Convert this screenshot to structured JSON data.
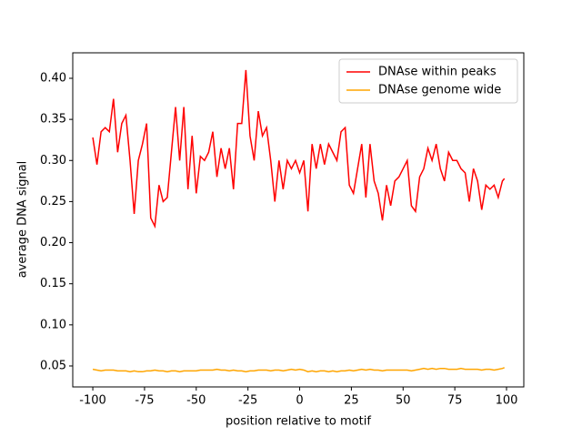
{
  "chart_data": {
    "type": "line",
    "xlabel": "position relative to motif",
    "ylabel": "average DNA signal",
    "x": [
      -100,
      -98,
      -96,
      -94,
      -92,
      -90,
      -88,
      -86,
      -84,
      -82,
      -80,
      -78,
      -76,
      -74,
      -72,
      -70,
      -68,
      -66,
      -64,
      -62,
      -60,
      -58,
      -56,
      -54,
      -52,
      -50,
      -48,
      -46,
      -44,
      -42,
      -40,
      -38,
      -36,
      -34,
      -32,
      -30,
      -28,
      -26,
      -24,
      -22,
      -20,
      -18,
      -16,
      -14,
      -12,
      -10,
      -8,
      -6,
      -4,
      -2,
      0,
      2,
      4,
      6,
      8,
      10,
      12,
      14,
      16,
      18,
      20,
      22,
      24,
      26,
      28,
      30,
      32,
      34,
      36,
      38,
      40,
      42,
      44,
      46,
      48,
      50,
      52,
      54,
      56,
      58,
      60,
      62,
      64,
      66,
      68,
      70,
      72,
      74,
      76,
      78,
      80,
      82,
      84,
      86,
      88,
      90,
      92,
      94,
      96,
      98,
      99
    ],
    "series": [
      {
        "name": "DNAse within peaks",
        "color": "#ff0000",
        "values": [
          0.328,
          0.295,
          0.335,
          0.34,
          0.335,
          0.375,
          0.31,
          0.345,
          0.355,
          0.3,
          0.235,
          0.3,
          0.32,
          0.345,
          0.23,
          0.22,
          0.27,
          0.25,
          0.255,
          0.31,
          0.365,
          0.3,
          0.365,
          0.265,
          0.33,
          0.26,
          0.305,
          0.3,
          0.31,
          0.335,
          0.28,
          0.315,
          0.29,
          0.315,
          0.265,
          0.345,
          0.345,
          0.41,
          0.33,
          0.3,
          0.36,
          0.33,
          0.34,
          0.3,
          0.25,
          0.3,
          0.265,
          0.3,
          0.29,
          0.3,
          0.285,
          0.3,
          0.238,
          0.32,
          0.29,
          0.32,
          0.295,
          0.32,
          0.31,
          0.3,
          0.335,
          0.34,
          0.27,
          0.26,
          0.29,
          0.32,
          0.255,
          0.32,
          0.275,
          0.26,
          0.227,
          0.27,
          0.245,
          0.275,
          0.28,
          0.29,
          0.3,
          0.245,
          0.238,
          0.28,
          0.29,
          0.315,
          0.3,
          0.32,
          0.29,
          0.275,
          0.31,
          0.3,
          0.3,
          0.29,
          0.285,
          0.25,
          0.29,
          0.275,
          0.24,
          0.27,
          0.265,
          0.27,
          0.255,
          0.275,
          0.278
        ]
      },
      {
        "name": "DNAse genome wide",
        "color": "#ffa500",
        "values": [
          0.046,
          0.045,
          0.044,
          0.045,
          0.045,
          0.045,
          0.044,
          0.044,
          0.044,
          0.043,
          0.044,
          0.043,
          0.043,
          0.044,
          0.044,
          0.045,
          0.044,
          0.044,
          0.043,
          0.044,
          0.044,
          0.043,
          0.044,
          0.044,
          0.044,
          0.044,
          0.045,
          0.045,
          0.045,
          0.045,
          0.046,
          0.045,
          0.045,
          0.044,
          0.045,
          0.044,
          0.044,
          0.043,
          0.044,
          0.044,
          0.045,
          0.045,
          0.045,
          0.044,
          0.045,
          0.045,
          0.044,
          0.045,
          0.046,
          0.045,
          0.046,
          0.045,
          0.043,
          0.044,
          0.043,
          0.044,
          0.044,
          0.043,
          0.044,
          0.043,
          0.044,
          0.044,
          0.045,
          0.044,
          0.045,
          0.046,
          0.045,
          0.046,
          0.045,
          0.045,
          0.044,
          0.045,
          0.045,
          0.045,
          0.045,
          0.045,
          0.045,
          0.044,
          0.045,
          0.046,
          0.047,
          0.046,
          0.047,
          0.046,
          0.047,
          0.047,
          0.046,
          0.046,
          0.046,
          0.047,
          0.046,
          0.046,
          0.046,
          0.046,
          0.045,
          0.046,
          0.046,
          0.045,
          0.046,
          0.047,
          0.048
        ]
      }
    ],
    "xlim": [
      -109.7,
      108.35
    ],
    "ylim": [
      0.0245,
      0.431
    ],
    "xticks": [
      -100,
      -75,
      -50,
      -25,
      0,
      25,
      50,
      75,
      100
    ],
    "yticks": [
      0.05,
      {
        "value": 0.1,
        "label": "0.10"
      },
      0.15,
      {
        "value": 0.2,
        "label": "0.20"
      },
      0.25,
      {
        "value": 0.3,
        "label": "0.30"
      },
      0.35,
      {
        "value": 0.4,
        "label": "0.40"
      }
    ],
    "legend": "upper right"
  }
}
